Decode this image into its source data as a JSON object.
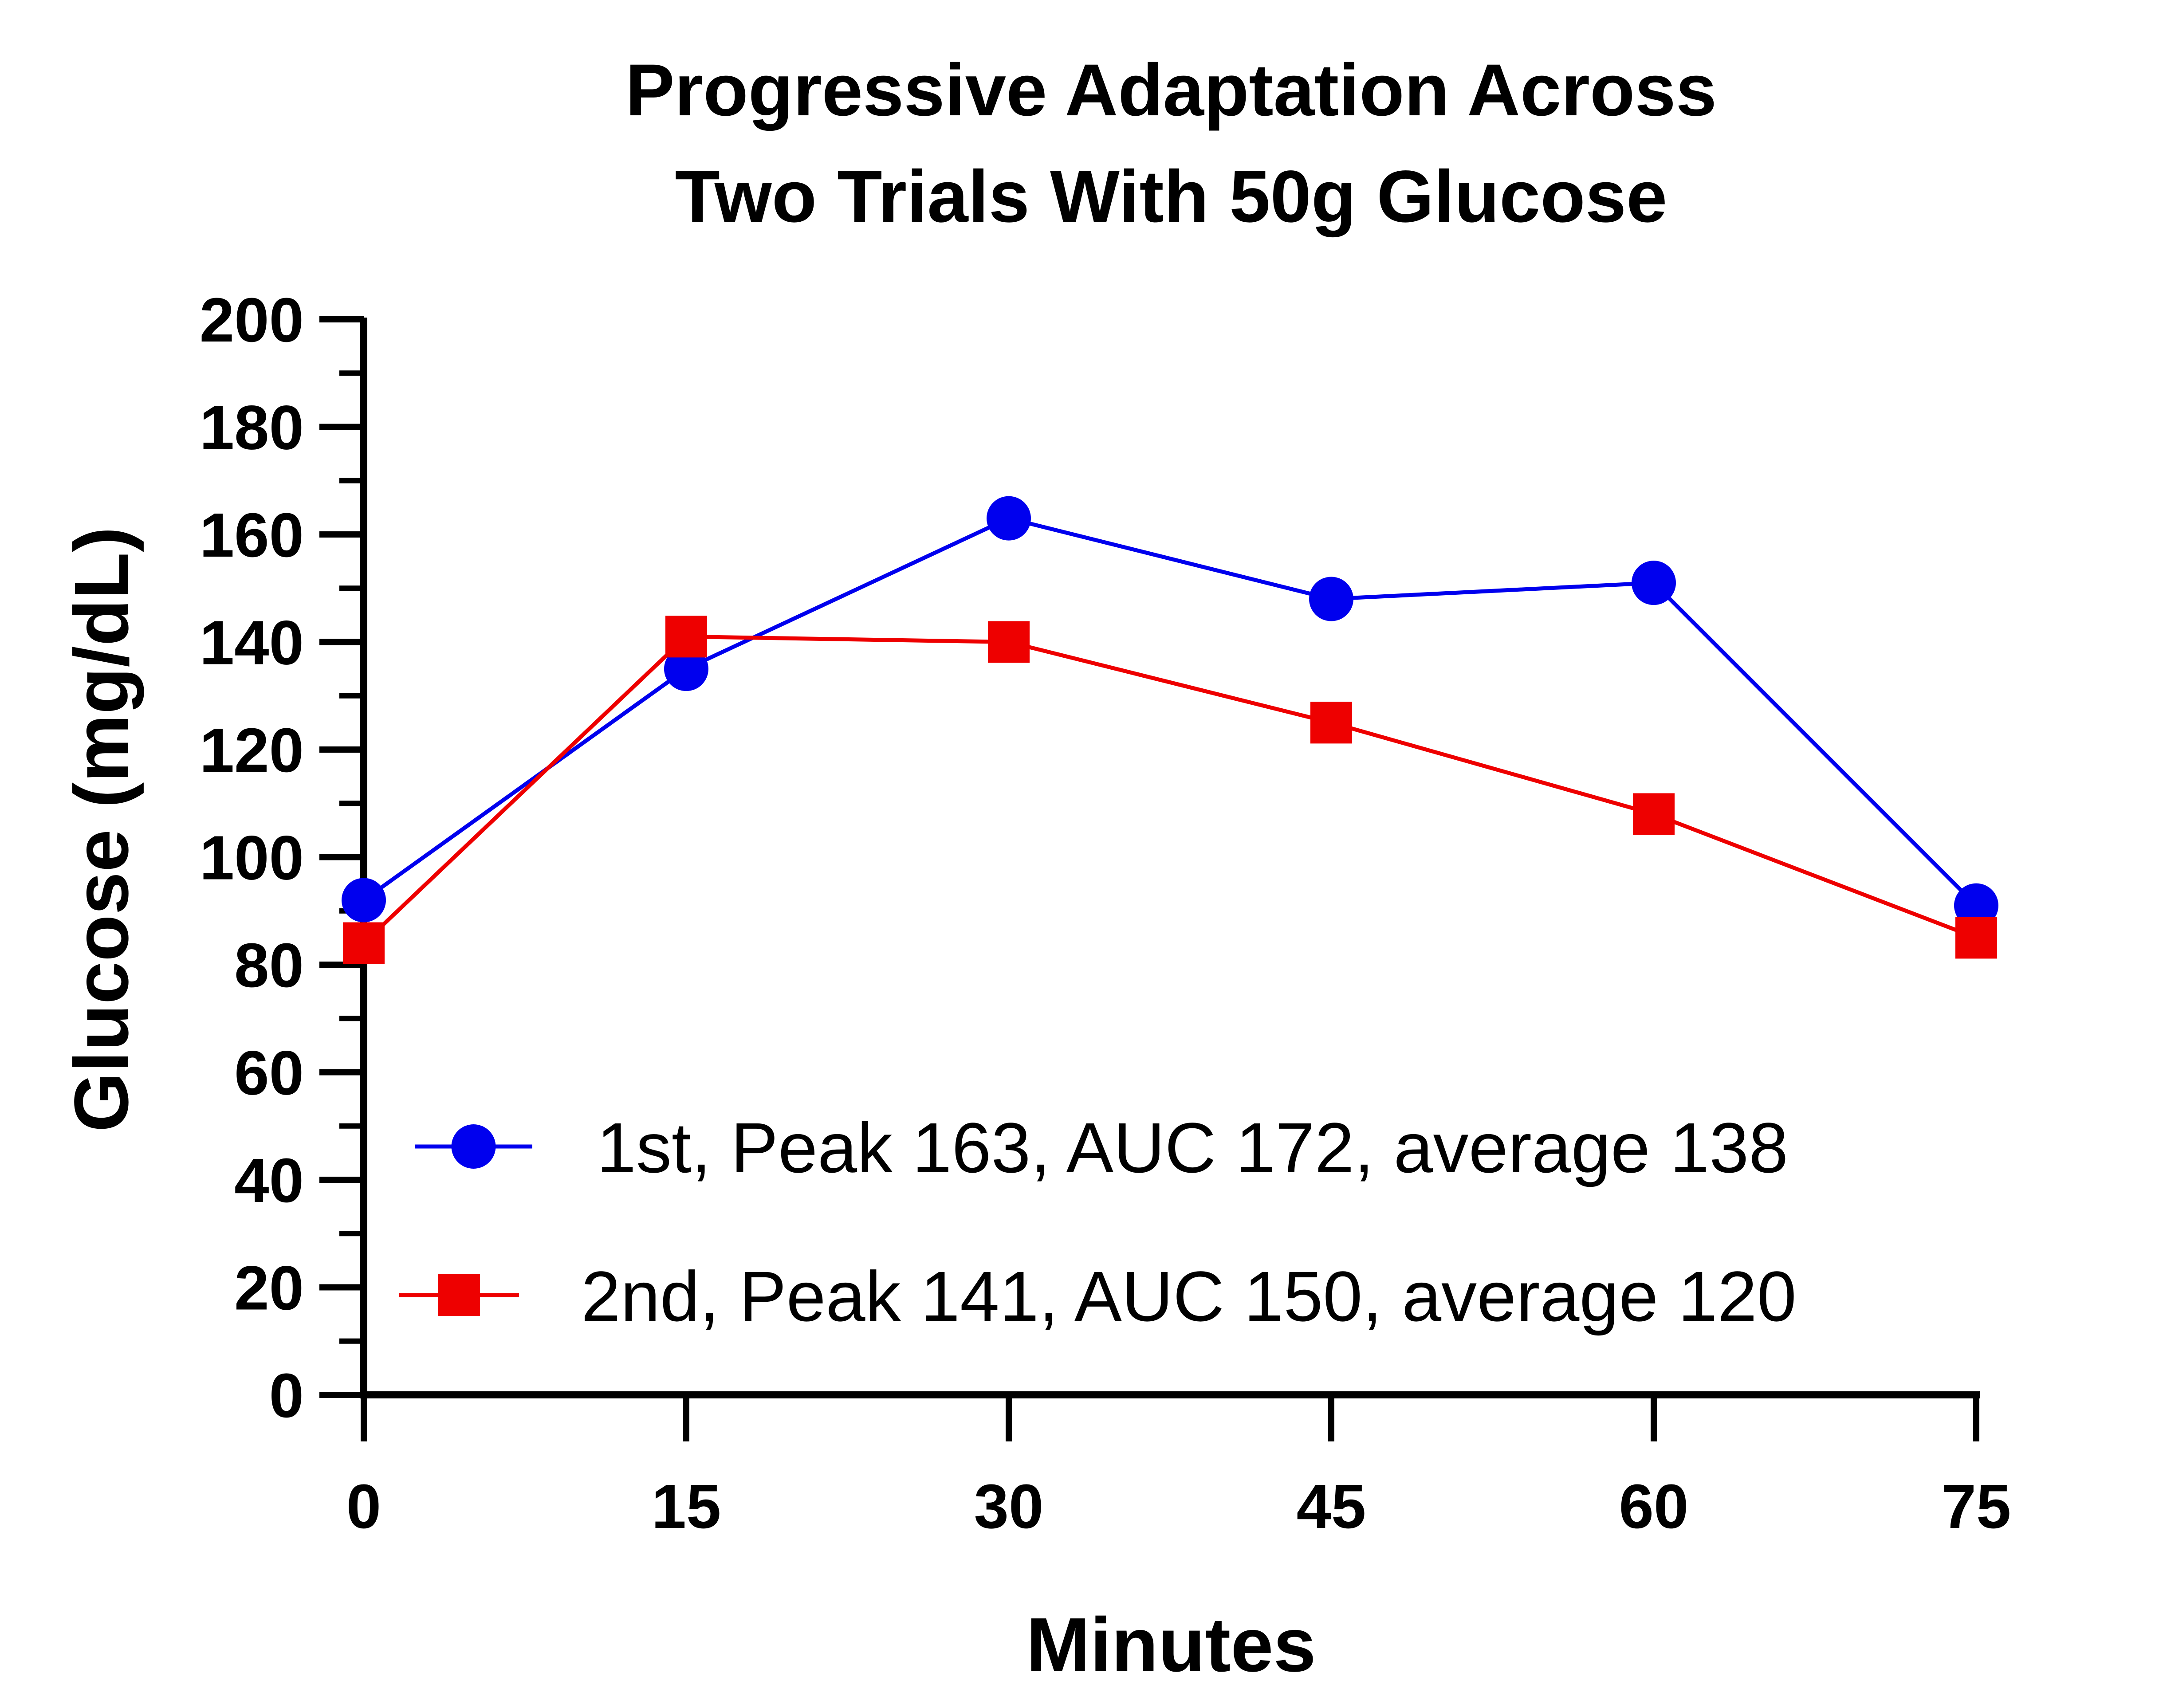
{
  "chart_data": {
    "type": "line",
    "title": [
      "Progressive Adaptation Across",
      "Two Trials With 50g Glucose"
    ],
    "xlabel": "Minutes",
    "ylabel": "Glucose (mg/dL)",
    "xlim": [
      0,
      75
    ],
    "ylim": [
      0,
      200
    ],
    "xticks": [
      0,
      15,
      30,
      45,
      60,
      75
    ],
    "yticks": [
      0,
      20,
      40,
      60,
      80,
      100,
      120,
      140,
      160,
      180,
      200
    ],
    "xtick_labels": [
      "0",
      "15",
      "30",
      "45",
      "60",
      "75"
    ],
    "ytick_labels": [
      "0",
      "20",
      "40",
      "60",
      "80",
      "100",
      "120",
      "140",
      "160",
      "180",
      "200"
    ],
    "x": [
      0,
      15,
      30,
      45,
      60,
      75
    ],
    "grid": false,
    "legend": "bottom-right",
    "series": [
      {
        "name": "1st, Peak 163, AUC 172, average 138",
        "values": [
          92,
          135,
          163,
          148,
          151,
          91
        ],
        "color": "#0000ee",
        "marker": "circle"
      },
      {
        "name": "2nd, Peak 141, AUC 150, average 120",
        "values": [
          84,
          141,
          140,
          125,
          108,
          85
        ],
        "color": "#ee0000",
        "marker": "square"
      }
    ]
  }
}
